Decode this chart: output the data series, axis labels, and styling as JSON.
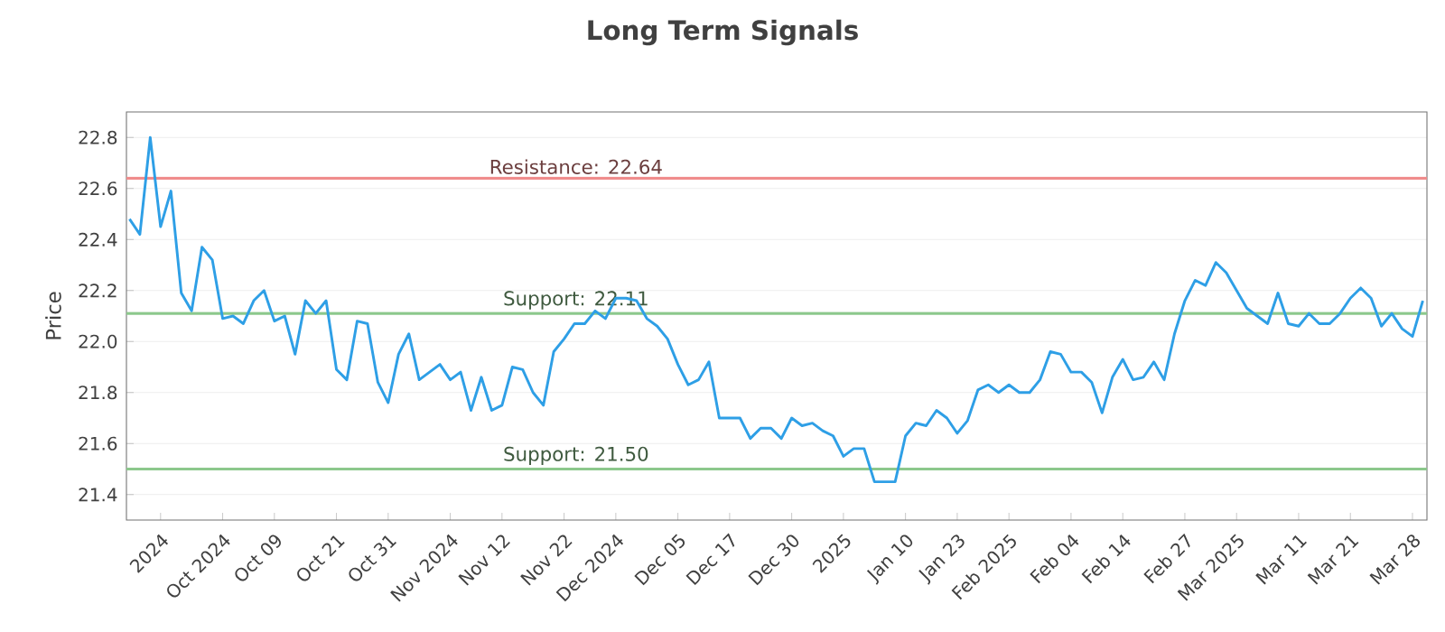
{
  "chart_data": {
    "type": "line",
    "title": "Long Term Signals",
    "ylabel": "Price",
    "categories": [
      null,
      null,
      null,
      "2024",
      null,
      null,
      null,
      null,
      null,
      "Oct 2024",
      null,
      null,
      null,
      null,
      "Oct 09",
      null,
      null,
      null,
      null,
      null,
      "Oct 21",
      null,
      null,
      null,
      null,
      "Oct 31",
      null,
      null,
      null,
      null,
      null,
      "Nov 2024",
      null,
      null,
      null,
      null,
      "Nov 12",
      null,
      null,
      null,
      null,
      null,
      "Nov 22",
      null,
      null,
      null,
      null,
      "Dec 2024",
      null,
      null,
      null,
      null,
      null,
      "Dec 05",
      null,
      null,
      null,
      null,
      "Dec 17",
      null,
      null,
      null,
      null,
      null,
      "Dec 30",
      null,
      null,
      null,
      null,
      "2025",
      null,
      null,
      null,
      null,
      null,
      "Jan 10",
      null,
      null,
      null,
      null,
      "Jan 23",
      null,
      null,
      null,
      null,
      "Feb 2025",
      null,
      null,
      null,
      null,
      null,
      "Feb 04",
      null,
      null,
      null,
      null,
      "Feb 14",
      null,
      null,
      null,
      null,
      null,
      "Feb 27",
      null,
      null,
      null,
      null,
      "Mar 2025",
      null,
      null,
      null,
      null,
      null,
      "Mar 11",
      null,
      null,
      null,
      null,
      "Mar 21",
      null,
      null,
      null,
      null,
      null,
      "Mar 28",
      null
    ],
    "series": [
      {
        "color": "#2e9fe6",
        "values": [
          22.48,
          22.42,
          22.8,
          22.45,
          22.59,
          22.19,
          22.12,
          22.37,
          22.32,
          22.09,
          22.1,
          22.07,
          22.16,
          22.2,
          22.08,
          22.1,
          21.95,
          22.16,
          22.11,
          22.16,
          21.89,
          21.85,
          22.08,
          22.07,
          21.84,
          21.76,
          21.95,
          22.03,
          21.85,
          21.88,
          21.91,
          21.85,
          21.88,
          21.73,
          21.86,
          21.73,
          21.75,
          21.9,
          21.89,
          21.8,
          21.75,
          21.96,
          22.01,
          22.07,
          22.07,
          22.12,
          22.09,
          22.17,
          22.17,
          22.16,
          22.09,
          22.06,
          22.01,
          21.91,
          21.83,
          21.85,
          21.92,
          21.7,
          21.7,
          21.7,
          21.62,
          21.66,
          21.66,
          21.62,
          21.7,
          21.67,
          21.68,
          21.65,
          21.63,
          21.55,
          21.58,
          21.58,
          21.45,
          21.45,
          21.45,
          21.63,
          21.68,
          21.67,
          21.73,
          21.7,
          21.64,
          21.69,
          21.81,
          21.83,
          21.8,
          21.83,
          21.8,
          21.8,
          21.85,
          21.96,
          21.95,
          21.88,
          21.88,
          21.84,
          21.72,
          21.86,
          21.93,
          21.85,
          21.86,
          21.92,
          21.85,
          22.03,
          22.16,
          22.24,
          22.22,
          22.31,
          22.27,
          22.2,
          22.13,
          22.1,
          22.07,
          22.19,
          22.07,
          22.06,
          22.11,
          22.07,
          22.07,
          22.11,
          22.17,
          22.21,
          22.17,
          22.06,
          22.11,
          22.05,
          22.02,
          22.16
        ]
      }
    ],
    "ylim": [
      21.3,
      22.9
    ],
    "yticks": [
      {
        "value": 21.4,
        "label": "21.4"
      },
      {
        "value": 21.6,
        "label": "21.6"
      },
      {
        "value": 21.8,
        "label": "21.8"
      },
      {
        "value": 22.0,
        "label": "22.0"
      },
      {
        "value": 22.2,
        "label": "22.2"
      },
      {
        "value": 22.4,
        "label": "22.4"
      },
      {
        "value": 22.6,
        "label": "22.6"
      },
      {
        "value": 22.8,
        "label": "22.8"
      }
    ],
    "ref_lines": [
      {
        "axis": "y",
        "value": 22.64,
        "label": "Resistance: 22.64",
        "color": "#f08c8c"
      },
      {
        "axis": "y",
        "value": 22.11,
        "label": "Support: 22.11",
        "color": "#8cc88c"
      },
      {
        "axis": "y",
        "value": 21.5,
        "label": "Support: 21.50",
        "color": "#8cc88c"
      }
    ],
    "grid": "y",
    "legend": false,
    "marker": "none",
    "line_style": "solid"
  }
}
